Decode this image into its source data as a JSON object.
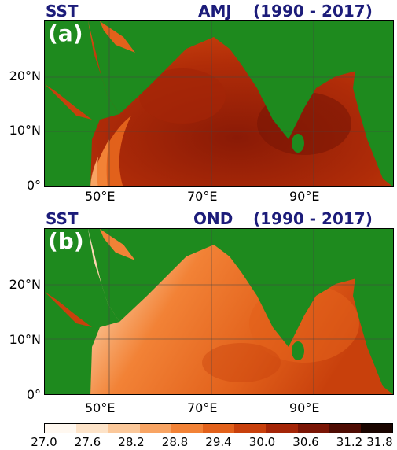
{
  "panel_a": {
    "var_label": "SST",
    "season_label": "AMJ",
    "period_label": "(1990 - 2017)",
    "tag": "(a)",
    "lat_labels": [
      "20°N",
      "10°N",
      "0°"
    ],
    "lon_labels": [
      "50°E",
      "70°E",
      "90°E"
    ]
  },
  "panel_b": {
    "var_label": "SST",
    "season_label": "OND",
    "period_label": "(1990 - 2017)",
    "tag": "(b)",
    "lat_labels": [
      "20°N",
      "10°N",
      "0°"
    ],
    "lon_labels": [
      "50°E",
      "70°E",
      "90°E"
    ]
  },
  "colorbar": {
    "ticks": [
      "27.0",
      "27.6",
      "28.2",
      "28.8",
      "29.4",
      "30.0",
      "30.6",
      "31.2",
      "31.8"
    ],
    "colors": [
      "#fff8f0",
      "#fde3c8",
      "#fbc89a",
      "#f8a463",
      "#f28236",
      "#e2611b",
      "#c8400c",
      "#a42507",
      "#7a1505",
      "#4e0c03",
      "#1a0500"
    ]
  },
  "colors": {
    "land": "#1e8a1e",
    "title": "#1c1c7a"
  }
}
